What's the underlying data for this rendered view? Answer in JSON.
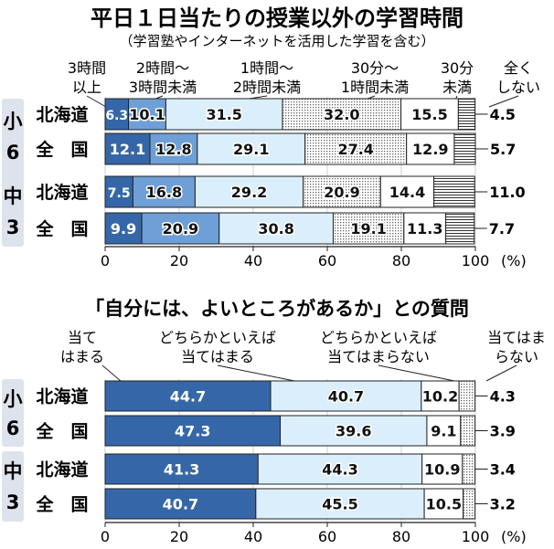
{
  "chart_data": [
    {
      "type": "bar",
      "title": "平日１日当たりの授業以外の学習時間",
      "subtitle": "（学習塾やインターネットを活用した学習を含む）",
      "unit": "(%)",
      "xlim": [
        0,
        100
      ],
      "xticks": [
        "0",
        "20",
        "40",
        "60",
        "80",
        "100"
      ],
      "legend": [
        [
          "3時間",
          "以上"
        ],
        [
          "2時間〜",
          "3時間未満"
        ],
        [
          "1時間〜",
          "2時間未満"
        ],
        [
          "30分〜",
          "1時間未満"
        ],
        [
          "30分",
          "未満"
        ],
        [
          "全く",
          "しない"
        ]
      ],
      "groups": [
        {
          "label": [
            "小",
            "6"
          ],
          "rows": [
            "北海道",
            "全　国"
          ]
        },
        {
          "label": [
            "中",
            "3"
          ],
          "rows": [
            "北海道",
            "全　国"
          ]
        }
      ],
      "categories": [
        "北海道",
        "全　国",
        "北海道",
        "全　国"
      ],
      "values": [
        [
          6.3,
          10.1,
          31.5,
          32.0,
          15.5,
          4.5
        ],
        [
          12.1,
          12.8,
          29.1,
          27.4,
          12.9,
          5.7
        ],
        [
          7.5,
          16.8,
          29.2,
          20.9,
          14.4,
          11.0
        ],
        [
          9.9,
          20.9,
          30.8,
          19.1,
          11.3,
          7.7
        ]
      ],
      "labels": [
        [
          "6.3",
          "10.1",
          "31.5",
          "32.0",
          "15.5",
          "4.5"
        ],
        [
          "12.1",
          "12.8",
          "29.1",
          "27.4",
          "12.9",
          "5.7"
        ],
        [
          "7.5",
          "16.8",
          "29.2",
          "20.9",
          "14.4",
          "11.0"
        ],
        [
          "9.9",
          "20.9",
          "30.8",
          "19.1",
          "11.3",
          "7.7"
        ]
      ],
      "colors": [
        "#3567a8",
        "#6e9fd6",
        "#daeefb",
        "#dddddd",
        "#ffffff",
        "#ffffff"
      ],
      "fill_patterns": [
        "solid",
        "solid",
        "solid",
        "dots",
        "solid",
        "horizontal-lines"
      ]
    },
    {
      "type": "bar",
      "title": "「自分には、よいところがあるか」との質問",
      "unit": "(%)",
      "xlim": [
        0,
        100
      ],
      "xticks": [
        "0",
        "20",
        "40",
        "60",
        "80",
        "100"
      ],
      "legend": [
        [
          "当て",
          "はまる"
        ],
        [
          "どちらかといえば",
          "当てはまる"
        ],
        [
          "どちらかといえば",
          "当てはまらない"
        ],
        [
          "当てはま",
          "らない"
        ]
      ],
      "groups": [
        {
          "label": [
            "小",
            "6"
          ],
          "rows": [
            "北海道",
            "全　国"
          ]
        },
        {
          "label": [
            "中",
            "3"
          ],
          "rows": [
            "北海道",
            "全　国"
          ]
        }
      ],
      "categories": [
        "北海道",
        "全　国",
        "北海道",
        "全　国"
      ],
      "values": [
        [
          44.7,
          40.7,
          10.2,
          4.3
        ],
        [
          47.3,
          39.6,
          9.1,
          3.9
        ],
        [
          41.3,
          44.3,
          10.9,
          3.4
        ],
        [
          40.7,
          45.5,
          10.5,
          3.2
        ]
      ],
      "labels": [
        [
          "44.7",
          "40.7",
          "10.2",
          "4.3"
        ],
        [
          "47.3",
          "39.6",
          "9.1",
          "3.9"
        ],
        [
          "41.3",
          "44.3",
          "10.9",
          "3.4"
        ],
        [
          "40.7",
          "45.5",
          "10.5",
          "3.2"
        ]
      ],
      "colors": [
        "#3567a8",
        "#daeefb",
        "#ffffff",
        "#ffffff"
      ],
      "fill_patterns": [
        "solid",
        "solid",
        "solid",
        "dots"
      ]
    }
  ]
}
